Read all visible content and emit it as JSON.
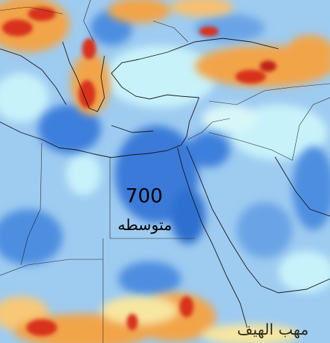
{
  "map": {
    "level": "700",
    "label": "متوسطه",
    "watermark": "مهب الهيف"
  }
}
